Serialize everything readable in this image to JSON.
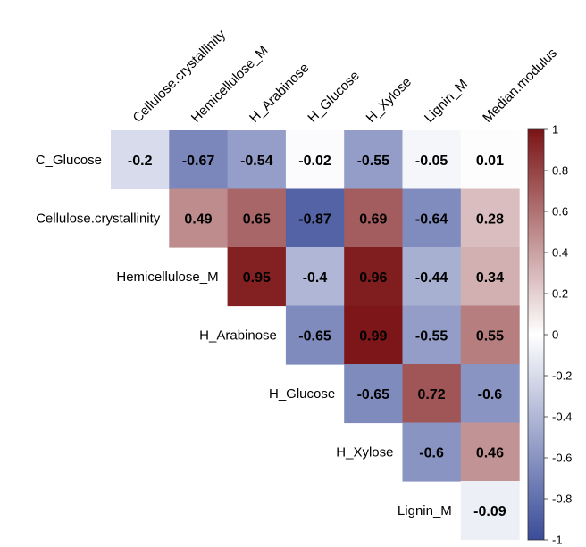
{
  "chart_data": {
    "type": "heatmap",
    "subtype": "correlation-upper-triangle",
    "title": "",
    "row_labels": [
      "C_Glucose",
      "Cellulose.crystallinity",
      "Hemicellulose_M",
      "H_Arabinose",
      "H_Glucose",
      "H_Xylose",
      "Lignin_M"
    ],
    "col_labels": [
      "Cellulose.crystallinity",
      "Hemicellulose_M",
      "H_Arabinose",
      "H_Glucose",
      "H_Xylose",
      "Lignin_M",
      "Median.modulus"
    ],
    "matrix": [
      [
        -0.2,
        -0.67,
        -0.54,
        -0.02,
        -0.55,
        -0.05,
        0.01
      ],
      [
        null,
        0.49,
        0.65,
        -0.87,
        0.69,
        -0.64,
        0.28
      ],
      [
        null,
        null,
        0.95,
        -0.4,
        0.96,
        -0.44,
        0.34
      ],
      [
        null,
        null,
        null,
        -0.65,
        0.99,
        -0.55,
        0.55
      ],
      [
        null,
        null,
        null,
        null,
        -0.65,
        0.72,
        -0.6
      ],
      [
        null,
        null,
        null,
        null,
        null,
        -0.6,
        0.46
      ],
      [
        null,
        null,
        null,
        null,
        null,
        null,
        -0.09
      ]
    ],
    "color_scale": {
      "min": -1,
      "mid": 0,
      "max": 1,
      "low_color": "#3a4c99",
      "mid_color": "#ffffff",
      "high_color": "#7b1416",
      "ticks": [
        "1",
        "0.8",
        "0.6",
        "0.4",
        "0.2",
        "0",
        "-0.2",
        "-0.4",
        "-0.6",
        "-0.8",
        "-1"
      ]
    },
    "legend": "right"
  }
}
